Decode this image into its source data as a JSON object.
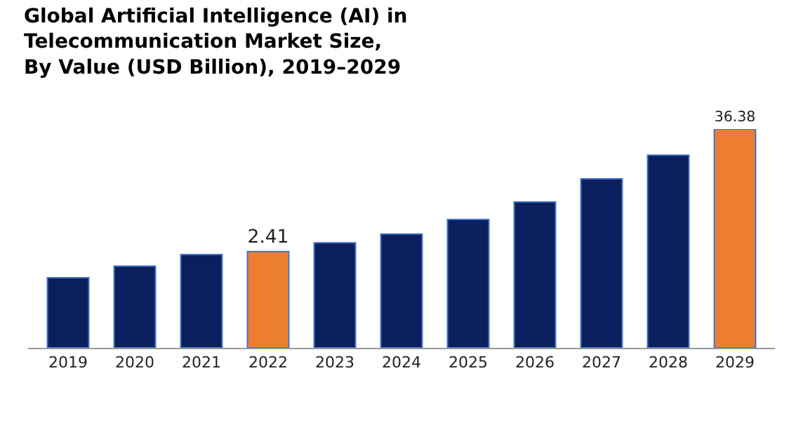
{
  "chart_data": {
    "type": "bar",
    "title": "Global Artificial Intelligence (AI) in\nTelecommunication Market Size,\nBy Value (USD Billion), 2019–2029",
    "categories": [
      "2019",
      "2020",
      "2021",
      "2022",
      "2023",
      "2024",
      "2025",
      "2026",
      "2027",
      "2028",
      "2029"
    ],
    "values": [
      1.35,
      1.75,
      2.26,
      2.41,
      2.93,
      3.56,
      4.91,
      7.24,
      12.1,
      20.4,
      36.38
    ],
    "colors": [
      "#0b1f5e",
      "#0b1f5e",
      "#0b1f5e",
      "#ed7d31",
      "#0b1f5e",
      "#0b1f5e",
      "#0b1f5e",
      "#0b1f5e",
      "#0b1f5e",
      "#0b1f5e",
      "#ed7d31"
    ],
    "value_labels": [
      null,
      null,
      null,
      "2.41",
      null,
      null,
      null,
      null,
      null,
      null,
      "36.38"
    ],
    "log": true,
    "ylim": [
      0.286,
      36.38
    ],
    "tick_labels": "x",
    "legend": false
  }
}
